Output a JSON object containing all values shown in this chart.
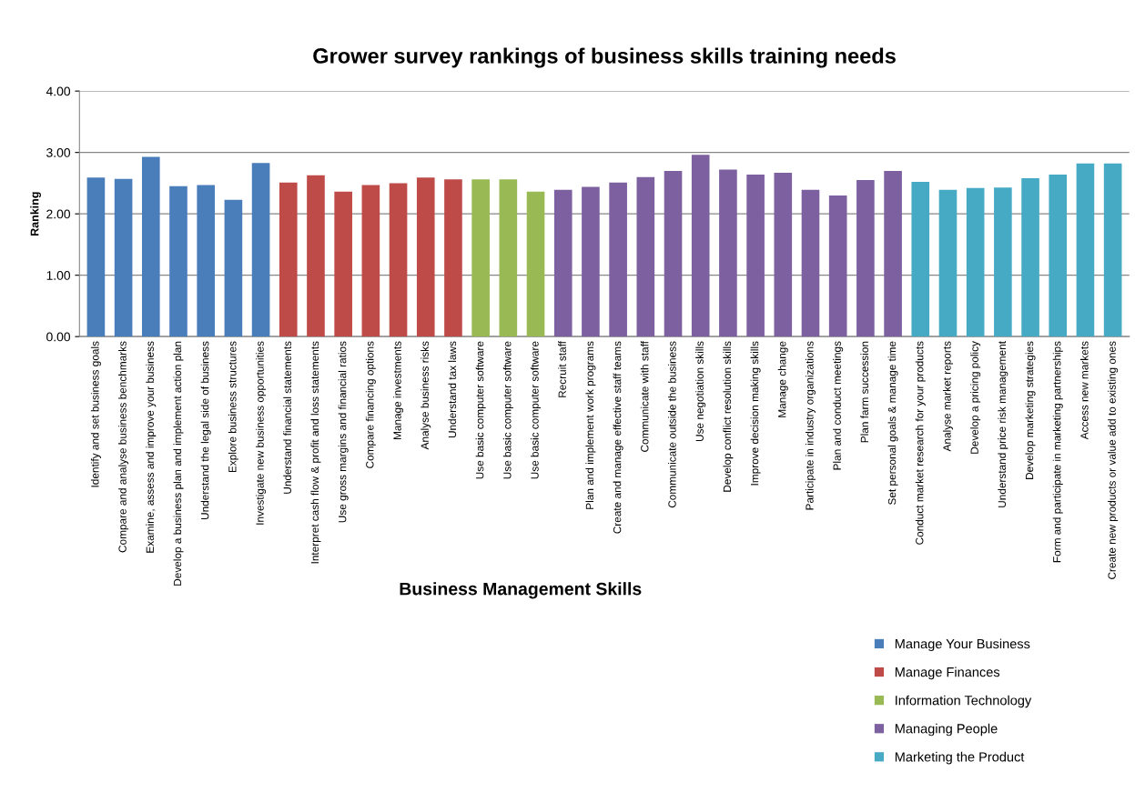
{
  "chart_data": {
    "type": "bar",
    "title": "Grower survey rankings of business skills training needs",
    "xlabel": "Business Management Skills",
    "ylabel": "Ranking",
    "categories": [
      "Identify and set business goals",
      "Compare and analyse business benchmarks",
      "Examine, assess and improve your business",
      "Develop a business plan and implement action plan",
      "Understand the legal side of business",
      "Explore business structures",
      "Investigate new business opportunities",
      "Understand financial statements",
      "Interpret cash flow & profit and loss statements",
      "Use gross margins and financial ratios",
      "Compare financing options",
      "Manage investments",
      "Analyse business risks",
      "Understand tax laws",
      "Use basic computer software",
      "Use basic computer software",
      "Use basic computer software",
      "Recruit staff",
      "Plan and implement work programs",
      "Create and manage effective staff teams",
      "Communicate with staff",
      "Communicate outside the business",
      "Use negotiation skills",
      "Develop conflict resolution skills",
      "Improve decision making skills",
      "Manage change",
      "Participate in industry organizations",
      "Plan and conduct meetings",
      "Plan farm succession",
      "Set personal goals & manage time",
      "Conduct market research for your products",
      "Analyse market reports",
      "Develop a pricing policy",
      "Understand price risk management",
      "Develop marketing strategies",
      "Form and participate in marketing partnerships",
      "Access new markets",
      "Create new products or value add to existing ones"
    ],
    "series": [
      {
        "name": "Manage Your Business",
        "color": "#4a7ebb",
        "values": [
          2.59,
          2.57,
          2.93,
          2.45,
          2.47,
          2.23,
          2.83,
          null,
          null,
          null,
          null,
          null,
          null,
          null,
          null,
          null,
          null,
          null,
          null,
          null,
          null,
          null,
          null,
          null,
          null,
          null,
          null,
          null,
          null,
          null,
          null,
          null,
          null,
          null,
          null,
          null,
          null,
          null
        ]
      },
      {
        "name": "Manage Finances",
        "color": "#be4b48",
        "values": [
          null,
          null,
          null,
          null,
          null,
          null,
          null,
          2.51,
          2.63,
          2.36,
          2.47,
          2.5,
          2.59,
          2.56,
          null,
          null,
          null,
          null,
          null,
          null,
          null,
          null,
          null,
          null,
          null,
          null,
          null,
          null,
          null,
          null,
          null,
          null,
          null,
          null,
          null,
          null,
          null,
          null
        ]
      },
      {
        "name": "Information Technology",
        "color": "#98b954",
        "values": [
          null,
          null,
          null,
          null,
          null,
          null,
          null,
          null,
          null,
          null,
          null,
          null,
          null,
          null,
          2.56,
          2.56,
          2.36,
          null,
          null,
          null,
          null,
          null,
          null,
          null,
          null,
          null,
          null,
          null,
          null,
          null,
          null,
          null,
          null,
          null,
          null,
          null,
          null,
          null
        ]
      },
      {
        "name": "Managing People",
        "color": "#7d60a0",
        "values": [
          null,
          null,
          null,
          null,
          null,
          null,
          null,
          null,
          null,
          null,
          null,
          null,
          null,
          null,
          null,
          null,
          null,
          2.39,
          2.44,
          2.51,
          2.6,
          2.7,
          2.96,
          2.72,
          2.64,
          2.67,
          2.39,
          2.3,
          2.55,
          2.7,
          null,
          null,
          null,
          null,
          null,
          null,
          null,
          null
        ]
      },
      {
        "name": "Marketing the Product",
        "color": "#46aac5",
        "values": [
          null,
          null,
          null,
          null,
          null,
          null,
          null,
          null,
          null,
          null,
          null,
          null,
          null,
          null,
          null,
          null,
          null,
          null,
          null,
          null,
          null,
          null,
          null,
          null,
          null,
          null,
          null,
          null,
          null,
          null,
          2.52,
          2.39,
          2.42,
          2.43,
          2.58,
          2.64,
          2.82,
          2.82
        ]
      }
    ],
    "ylim": [
      0,
      4
    ],
    "yticks": [
      {
        "value": 0,
        "label": "0.00"
      },
      {
        "value": 1,
        "label": "1.00"
      },
      {
        "value": 2,
        "label": "2.00"
      },
      {
        "value": 3,
        "label": "3.00"
      },
      {
        "value": 4,
        "label": "4.00"
      }
    ],
    "grid": "y",
    "legend": "bottom right"
  }
}
